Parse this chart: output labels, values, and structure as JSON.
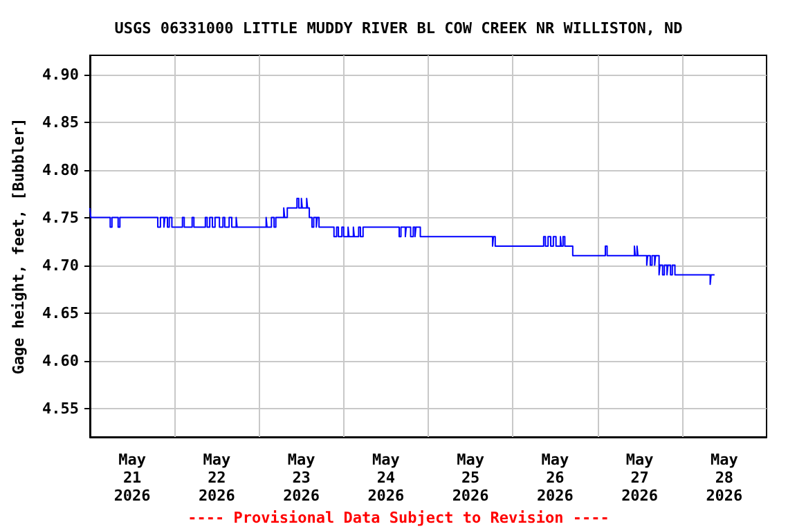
{
  "chart_data": {
    "type": "step",
    "title": "USGS 06331000 LITTLE MUDDY RIVER BL COW CREEK NR WILLISTON, ND",
    "ylabel": "Gage height, feet, [Bubbler]",
    "annotations": [
      "---- Provisional Data Subject to Revision ----"
    ],
    "xlim": [
      "2026-05-21T00:00",
      "2026-05-29T00:00"
    ],
    "xticks": [
      {
        "value": "2026-05-21T12:00",
        "label": "May\n21\n2026"
      },
      {
        "value": "2026-05-22T00:00",
        "label": null
      },
      {
        "value": "2026-05-22T12:00",
        "label": "May\n22\n2026"
      },
      {
        "value": "2026-05-23T00:00",
        "label": null
      },
      {
        "value": "2026-05-23T12:00",
        "label": "May\n23\n2026"
      },
      {
        "value": "2026-05-24T00:00",
        "label": null
      },
      {
        "value": "2026-05-24T12:00",
        "label": "May\n24\n2026"
      },
      {
        "value": "2026-05-25T00:00",
        "label": null
      },
      {
        "value": "2026-05-25T12:00",
        "label": "May\n25\n2026"
      },
      {
        "value": "2026-05-26T00:00",
        "label": null
      },
      {
        "value": "2026-05-26T12:00",
        "label": "May\n26\n2026"
      },
      {
        "value": "2026-05-27T00:00",
        "label": null
      },
      {
        "value": "2026-05-27T12:00",
        "label": "May\n27\n2026"
      },
      {
        "value": "2026-05-28T00:00",
        "label": null
      },
      {
        "value": "2026-05-28T12:00",
        "label": "May\n28\n2026"
      }
    ],
    "ylim": [
      4.52,
      4.92
    ],
    "yticks": [
      4.55,
      {
        "value": 4.6,
        "label": "4.60"
      },
      4.65,
      {
        "value": 4.7,
        "label": "4.70"
      },
      4.75,
      {
        "value": 4.8,
        "label": "4.80"
      },
      4.85,
      {
        "value": 4.9,
        "label": "4.90"
      }
    ],
    "grid": true,
    "marker": "none",
    "series": [
      {
        "color": "#0000ff",
        "x": [
          "2026-05-21T00:00",
          "2026-05-21T00:15",
          "2026-05-21T05:45",
          "2026-05-21T06:15",
          "2026-05-21T08:00",
          "2026-05-21T08:30",
          "2026-05-21T19:15",
          "2026-05-21T20:00",
          "2026-05-21T21:00",
          "2026-05-21T21:15",
          "2026-05-21T22:00",
          "2026-05-21T22:30",
          "2026-05-21T23:15",
          "2026-05-22T02:15",
          "2026-05-22T02:45",
          "2026-05-22T05:00",
          "2026-05-22T05:30",
          "2026-05-22T08:45",
          "2026-05-22T09:15",
          "2026-05-22T10:00",
          "2026-05-22T10:45",
          "2026-05-22T11:30",
          "2026-05-22T12:45",
          "2026-05-22T13:45",
          "2026-05-22T14:15",
          "2026-05-22T15:30",
          "2026-05-22T16:15",
          "2026-05-22T17:30",
          "2026-05-22T17:45",
          "2026-05-23T02:00",
          "2026-05-23T02:15",
          "2026-05-23T03:30",
          "2026-05-23T04:15",
          "2026-05-23T04:45",
          "2026-05-23T07:00",
          "2026-05-23T07:15",
          "2026-05-23T08:00",
          "2026-05-23T10:45",
          "2026-05-23T11:15",
          "2026-05-23T12:00",
          "2026-05-23T12:15",
          "2026-05-23T13:30",
          "2026-05-23T13:45",
          "2026-05-23T14:15",
          "2026-05-23T15:00",
          "2026-05-23T15:30",
          "2026-05-23T16:15",
          "2026-05-23T16:30",
          "2026-05-23T17:00",
          "2026-05-23T21:15",
          "2026-05-23T22:00",
          "2026-05-23T22:30",
          "2026-05-23T23:30",
          "2026-05-24T00:00",
          "2026-05-24T01:15",
          "2026-05-24T01:30",
          "2026-05-24T02:45",
          "2026-05-24T03:00",
          "2026-05-24T04:15",
          "2026-05-24T04:45",
          "2026-05-24T05:30",
          "2026-05-24T15:45",
          "2026-05-24T16:15",
          "2026-05-24T17:30",
          "2026-05-24T17:45",
          "2026-05-24T19:00",
          "2026-05-24T19:45",
          "2026-05-24T20:15",
          "2026-05-24T20:30",
          "2026-05-24T21:45",
          "2026-05-25T18:15",
          "2026-05-25T18:30",
          "2026-05-25T19:00",
          "2026-05-26T08:45",
          "2026-05-26T09:15",
          "2026-05-26T10:00",
          "2026-05-26T10:45",
          "2026-05-26T11:30",
          "2026-05-26T12:15",
          "2026-05-26T13:30",
          "2026-05-26T13:45",
          "2026-05-26T14:15",
          "2026-05-26T14:45",
          "2026-05-26T17:00",
          "2026-05-27T02:15",
          "2026-05-27T02:45",
          "2026-05-27T10:30",
          "2026-05-27T10:45",
          "2026-05-27T11:15",
          "2026-05-27T11:30",
          "2026-05-27T14:00",
          "2026-05-27T14:15",
          "2026-05-27T15:00",
          "2026-05-27T15:30",
          "2026-05-27T16:15",
          "2026-05-27T16:30",
          "2026-05-27T17:30",
          "2026-05-27T17:45",
          "2026-05-27T18:30",
          "2026-05-27T19:00",
          "2026-05-27T19:45",
          "2026-05-27T20:00",
          "2026-05-27T20:45",
          "2026-05-27T21:15",
          "2026-05-27T22:00",
          "2026-05-28T08:00",
          "2026-05-28T08:15",
          "2026-05-28T09:15"
        ],
        "values": [
          4.76,
          4.75,
          4.74,
          4.75,
          4.74,
          4.75,
          4.74,
          4.75,
          4.74,
          4.75,
          4.74,
          4.75,
          4.74,
          4.75,
          4.74,
          4.75,
          4.74,
          4.75,
          4.74,
          4.75,
          4.74,
          4.75,
          4.74,
          4.75,
          4.74,
          4.75,
          4.74,
          4.75,
          4.74,
          4.75,
          4.74,
          4.75,
          4.74,
          4.75,
          4.76,
          4.75,
          4.76,
          4.77,
          4.76,
          4.77,
          4.76,
          4.77,
          4.76,
          4.75,
          4.74,
          4.75,
          4.74,
          4.75,
          4.74,
          4.73,
          4.74,
          4.73,
          4.74,
          4.73,
          4.74,
          4.73,
          4.74,
          4.73,
          4.74,
          4.73,
          4.74,
          4.73,
          4.74,
          4.73,
          4.74,
          4.73,
          4.74,
          4.73,
          4.74,
          4.73,
          4.72,
          4.73,
          4.72,
          4.73,
          4.72,
          4.73,
          4.72,
          4.73,
          4.72,
          4.73,
          4.72,
          4.73,
          4.72,
          4.71,
          4.72,
          4.71,
          4.72,
          4.71,
          4.72,
          4.71,
          4.7,
          4.71,
          4.7,
          4.71,
          4.7,
          4.71,
          4.69,
          4.7,
          4.69,
          4.7,
          4.69,
          4.7,
          4.69,
          4.7,
          4.69,
          4.68,
          4.69,
          4.69
        ]
      }
    ]
  }
}
